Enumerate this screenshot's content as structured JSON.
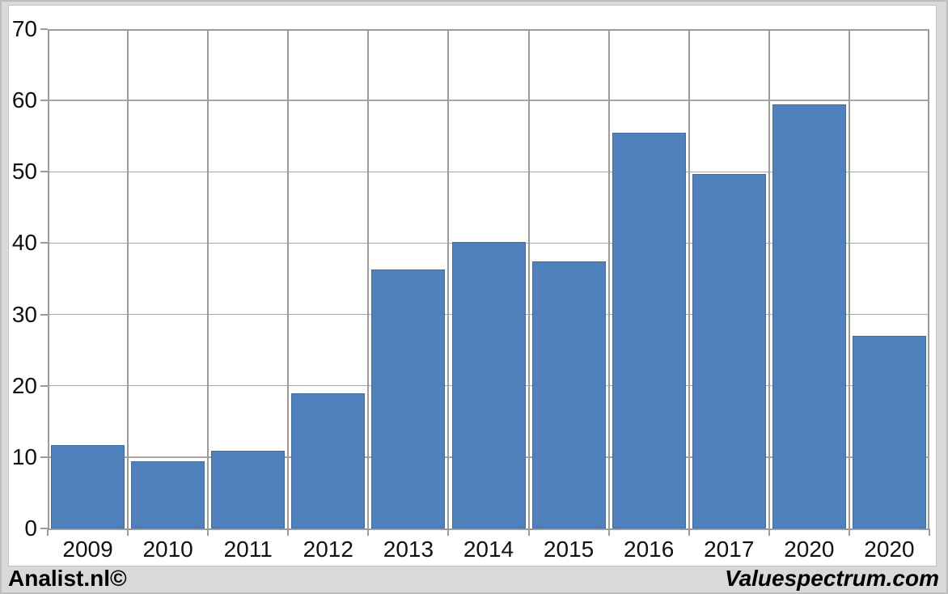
{
  "chart_data": {
    "type": "bar",
    "title": "",
    "xlabel": "",
    "ylabel": "",
    "categories": [
      "2009",
      "2010",
      "2011",
      "2012",
      "2013",
      "2014",
      "2015",
      "2016",
      "2017",
      "2020",
      "2020"
    ],
    "values": [
      11.7,
      9.4,
      10.9,
      19.0,
      36.3,
      40.2,
      37.4,
      55.5,
      49.7,
      59.4,
      27.0
    ],
    "ylim": [
      0,
      70
    ],
    "yticks": [
      0,
      10,
      20,
      30,
      40,
      50,
      60,
      70
    ],
    "grid": true,
    "legend": false,
    "bar_color": "#4f81bd",
    "bar_border_color": "#416da3",
    "gridline_color": "#a8a8a8",
    "plot_border_color": "#9c9c9c",
    "frame_color": "#d9d9d9",
    "plot_bg_color": "#ffffff"
  },
  "footer": {
    "left_brand": "Analist.nl©",
    "right_brand": "Valuespectrum.com"
  }
}
